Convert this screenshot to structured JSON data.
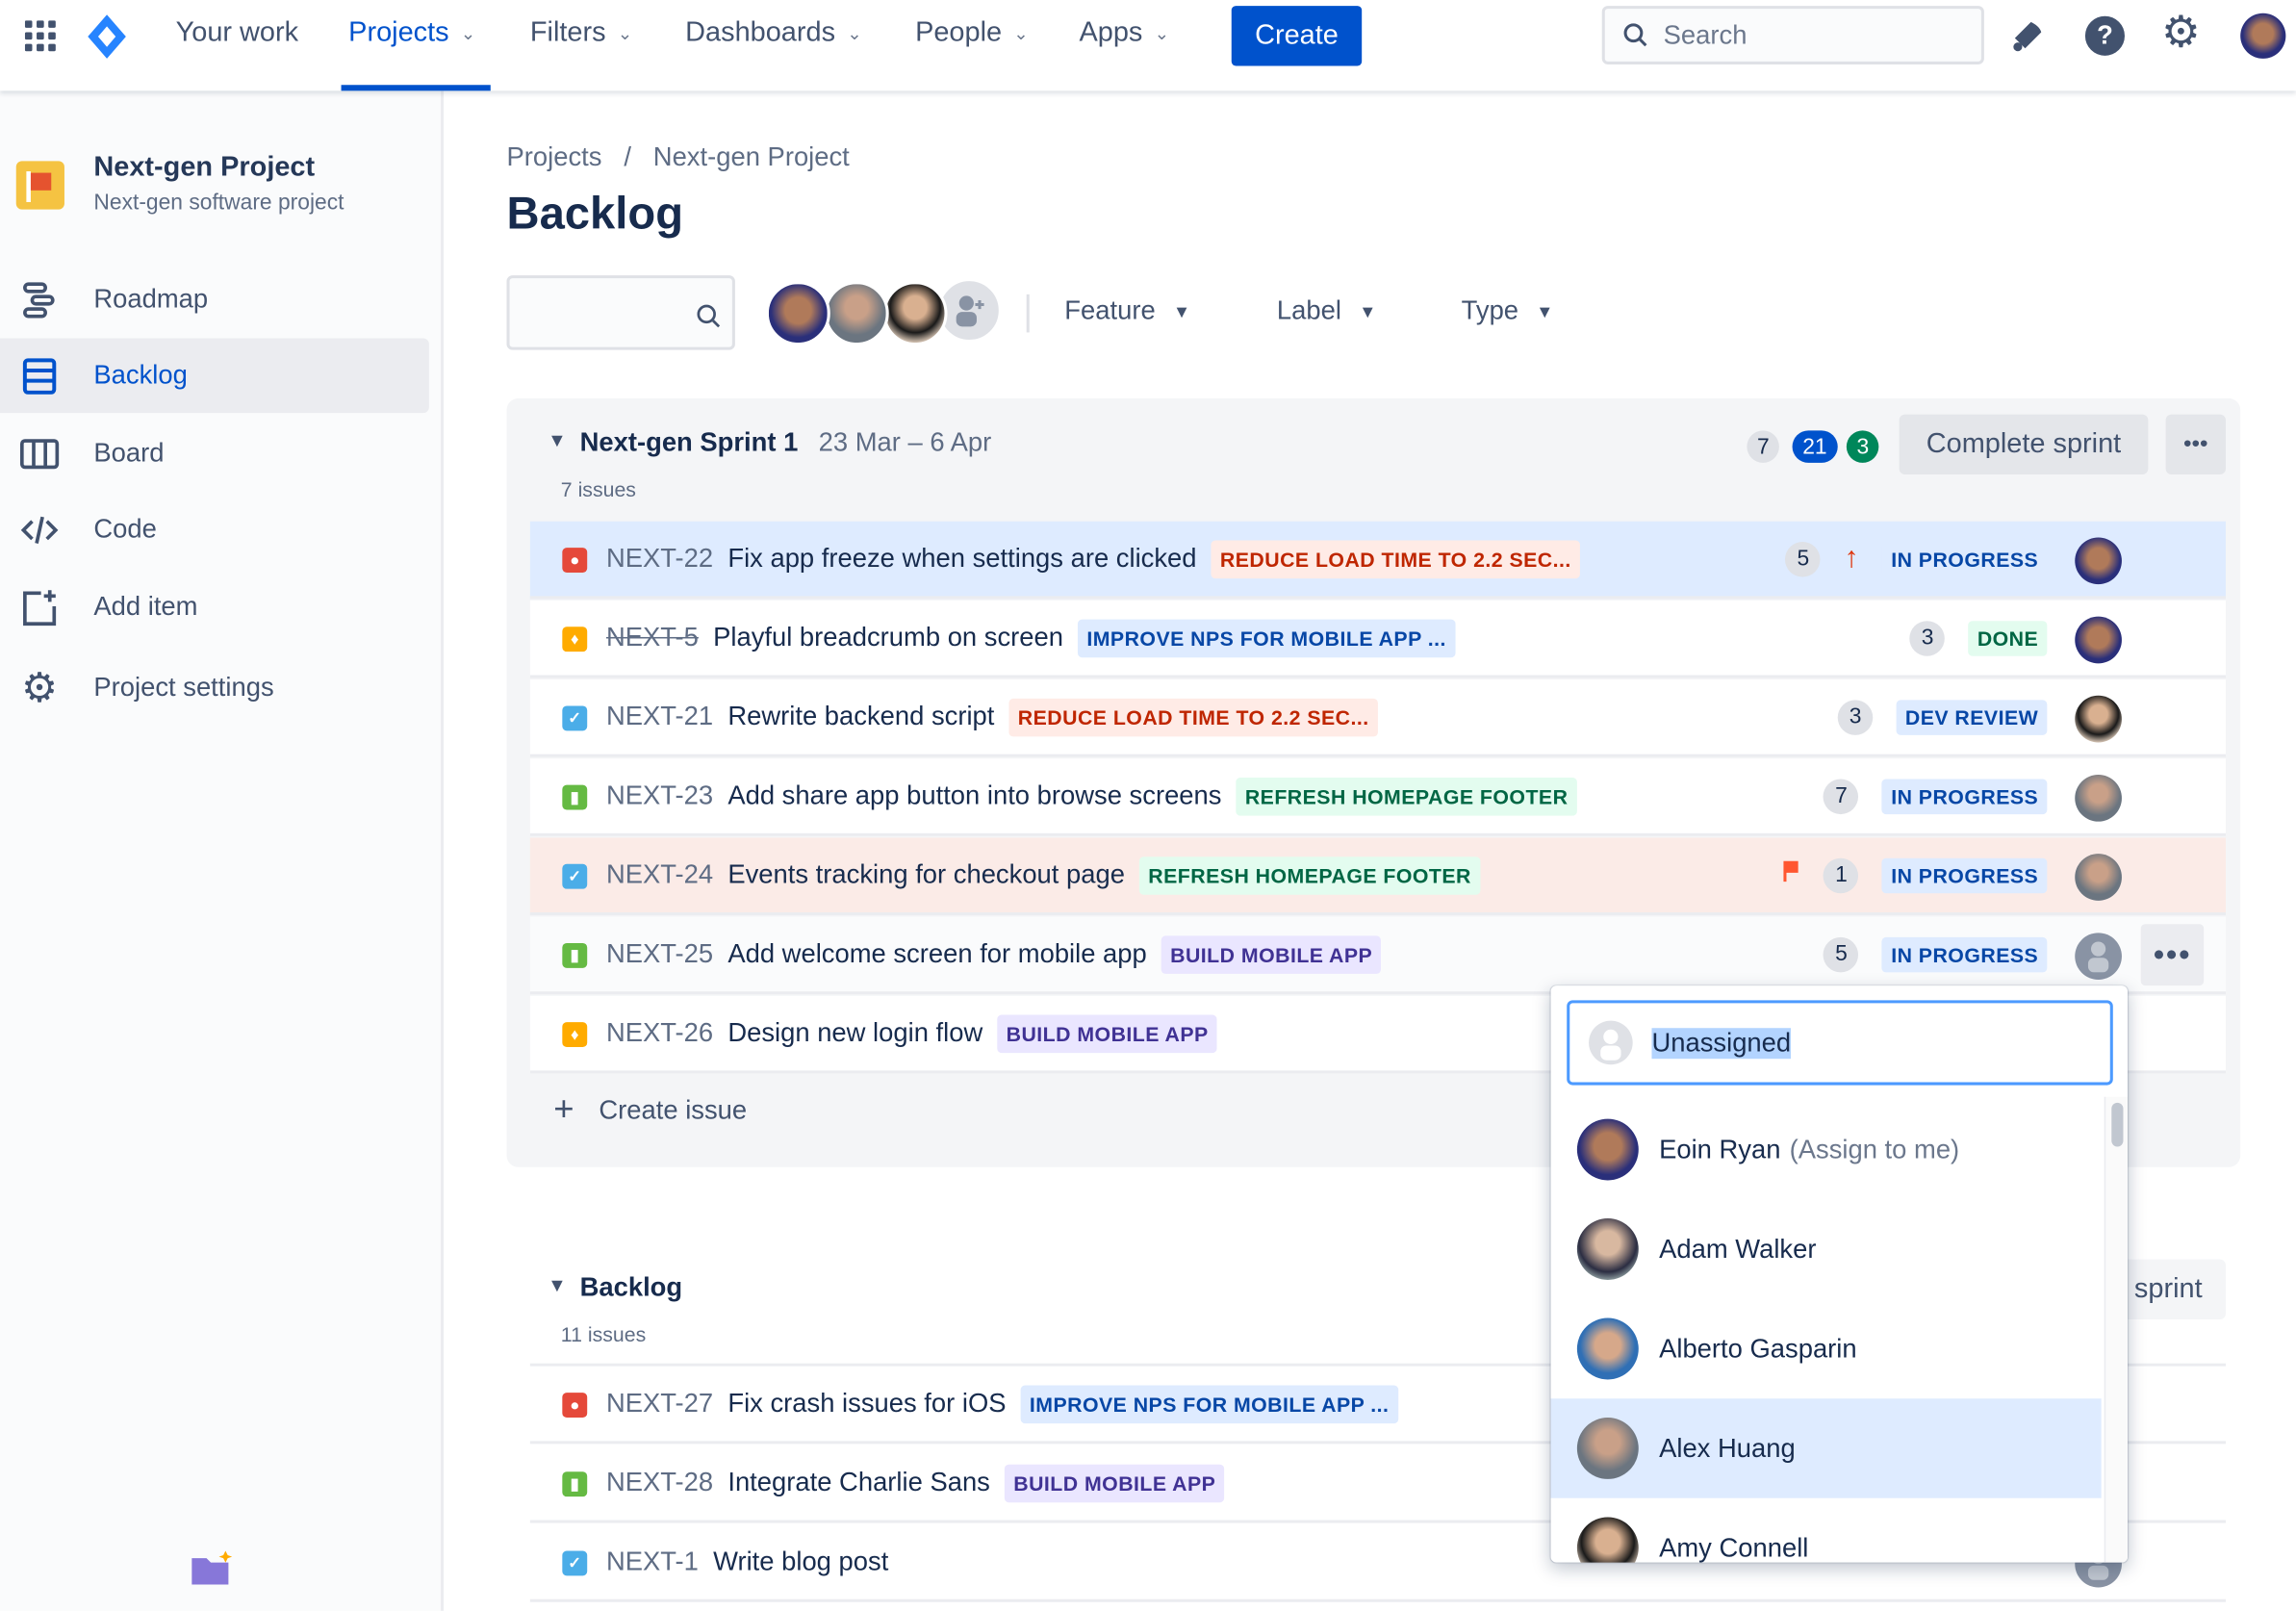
{
  "topnav": {
    "items": [
      {
        "label": "Your work",
        "dropdown": false
      },
      {
        "label": "Projects",
        "dropdown": true,
        "active": true
      },
      {
        "label": "Filters",
        "dropdown": true
      },
      {
        "label": "Dashboards",
        "dropdown": true
      },
      {
        "label": "People",
        "dropdown": true
      },
      {
        "label": "Apps",
        "dropdown": true
      }
    ],
    "create_label": "Create",
    "search_placeholder": "Search",
    "accent": "#0052cc"
  },
  "sidebar": {
    "project_name": "Next-gen Project",
    "project_type": "Next-gen software project",
    "items": [
      {
        "label": "Roadmap",
        "icon": "roadmap-icon"
      },
      {
        "label": "Backlog",
        "icon": "backlog-icon",
        "selected": true
      },
      {
        "label": "Board",
        "icon": "board-icon"
      },
      {
        "label": "Code",
        "icon": "code-icon"
      },
      {
        "label": "Add item",
        "icon": "add-item-icon"
      },
      {
        "label": "Project settings",
        "icon": "gear-icon"
      }
    ]
  },
  "breadcrumb": {
    "root": "Projects",
    "sep": "/",
    "current": "Next-gen Project"
  },
  "page_title": "Backlog",
  "filters": {
    "feature": "Feature",
    "label": "Label",
    "type": "Type"
  },
  "sprint": {
    "name": "Next-gen Sprint 1",
    "dates": "23 Mar – 6 Apr",
    "count": "7 issues",
    "badges": {
      "todo": "7",
      "in_progress": "21",
      "done": "3"
    },
    "complete_label": "Complete sprint",
    "more_label": "•••",
    "create_issue": "Create issue",
    "rows": [
      {
        "type": "bug",
        "key": "NEXT-22",
        "summary": "Fix app freeze when settings are clicked",
        "epic": "REDUCE LOAD TIME TO 2.2 SEC...",
        "epic_color": "red",
        "points": "5",
        "priority": "high",
        "status": "IN PROGRESS",
        "status_color": "blue",
        "assignee": "eoin",
        "highlight": "selected"
      },
      {
        "type": "improvement",
        "key": "NEXT-5",
        "struck": true,
        "summary": "Playful breadcrumb on screen",
        "epic": "IMPROVE NPS FOR MOBILE APP ...",
        "epic_color": "blue",
        "points": "3",
        "status": "DONE",
        "status_color": "green",
        "assignee": "eoin"
      },
      {
        "type": "task",
        "key": "NEXT-21",
        "summary": "Rewrite backend script",
        "epic": "REDUCE LOAD TIME TO 2.2 SEC...",
        "epic_color": "red",
        "points": "3",
        "status": "DEV REVIEW",
        "status_color": "blue",
        "assignee": "amy"
      },
      {
        "type": "story",
        "key": "NEXT-23",
        "summary": "Add share app button into browse screens",
        "epic": "REFRESH HOMEPAGE FOOTER",
        "epic_color": "green",
        "points": "7",
        "status": "IN PROGRESS",
        "status_color": "blue",
        "assignee": "alex"
      },
      {
        "type": "task",
        "key": "NEXT-24",
        "summary": "Events tracking for checkout page",
        "epic": "REFRESH HOMEPAGE FOOTER",
        "epic_color": "green",
        "points": "1",
        "flagged": true,
        "status": "IN PROGRESS",
        "status_color": "blue",
        "assignee": "alex",
        "highlight": "flagged"
      },
      {
        "type": "story",
        "key": "NEXT-25",
        "summary": "Add welcome screen for mobile app",
        "epic": "BUILD MOBILE APP",
        "epic_color": "purple",
        "points": "5",
        "status": "IN PROGRESS",
        "status_color": "blue",
        "assignee": "unassigned",
        "highlight": "hover",
        "more": "•••"
      },
      {
        "type": "improvement",
        "key": "NEXT-26",
        "summary": "Design new login flow",
        "epic": "BUILD MOBILE APP",
        "epic_color": "purple"
      }
    ]
  },
  "backlog": {
    "name": "Backlog",
    "count": "11 issues",
    "button_label": "sprint",
    "rows": [
      {
        "type": "bug",
        "key": "NEXT-27",
        "summary": "Fix crash issues for iOS",
        "epic": "IMPROVE NPS FOR MOBILE APP ...",
        "epic_color": "blue"
      },
      {
        "type": "story",
        "key": "NEXT-28",
        "summary": "Integrate Charlie Sans",
        "epic": "BUILD MOBILE APP",
        "epic_color": "purple"
      },
      {
        "type": "task",
        "key": "NEXT-1",
        "summary": "Write blog post",
        "assignee": "unassigned"
      }
    ]
  },
  "assignee_dropdown": {
    "value": "Unassigned",
    "options": [
      {
        "name": "Eoin Ryan",
        "hint": "(Assign to me)",
        "avatar": "eoin"
      },
      {
        "name": "Adam Walker",
        "avatar": "adam"
      },
      {
        "name": "Alberto Gasparin",
        "avatar": "alberto"
      },
      {
        "name": "Alex Huang",
        "avatar": "alex",
        "highlighted": true
      },
      {
        "name": "Amy Connell",
        "avatar": "amy"
      }
    ]
  }
}
